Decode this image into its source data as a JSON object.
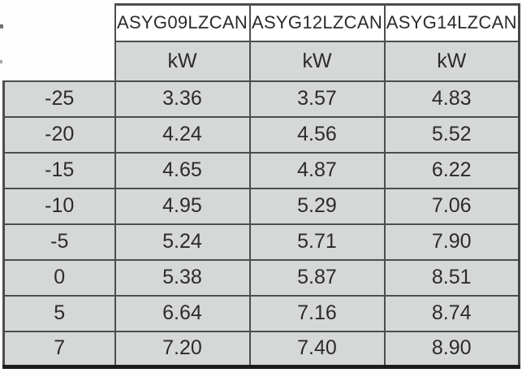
{
  "table": {
    "description": "Heating capacity table (scanned spec sheet)",
    "unit_label": "kW",
    "columns": [
      "ASYG09LZCAN",
      "ASYG12LZCAN",
      "ASYG14LZCAN"
    ],
    "rows": [
      {
        "temp": "-25",
        "values": [
          "3.36",
          "3.57",
          "4.83"
        ]
      },
      {
        "temp": "-20",
        "values": [
          "4.24",
          "4.56",
          "5.52"
        ]
      },
      {
        "temp": "-15",
        "values": [
          "4.65",
          "4.87",
          "6.22"
        ]
      },
      {
        "temp": "-10",
        "values": [
          "4.95",
          "5.29",
          "7.06"
        ]
      },
      {
        "temp": "-5",
        "values": [
          "5.24",
          "5.71",
          "7.90"
        ]
      },
      {
        "temp": "0",
        "values": [
          "5.38",
          "5.87",
          "8.51"
        ]
      },
      {
        "temp": "5",
        "values": [
          "6.64",
          "7.16",
          "8.74"
        ]
      },
      {
        "temp": "7",
        "values": [
          "7.20",
          "7.40",
          "8.90"
        ]
      }
    ],
    "colors": {
      "cell_bg": "#d6d8d8",
      "grid_border": "#4b4d4f",
      "bottom_border": "#1c1c1c",
      "header_bg": "#ffffff",
      "text": "#2b2b2d"
    }
  }
}
